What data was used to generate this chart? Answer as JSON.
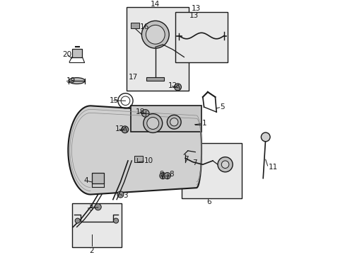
{
  "bg_color": "#ffffff",
  "line_color": "#1a1a1a",
  "box_fill": "#e8e8e8",
  "figsize": [
    4.89,
    3.6
  ],
  "dpi": 100,
  "label_font": 7.5,
  "boxes": {
    "14": [
      0.315,
      0.02,
      0.565,
      0.355
    ],
    "13": [
      0.51,
      0.04,
      0.72,
      0.24
    ],
    "6": [
      0.535,
      0.565,
      0.775,
      0.785
    ],
    "2": [
      0.095,
      0.805,
      0.295,
      0.98
    ]
  }
}
